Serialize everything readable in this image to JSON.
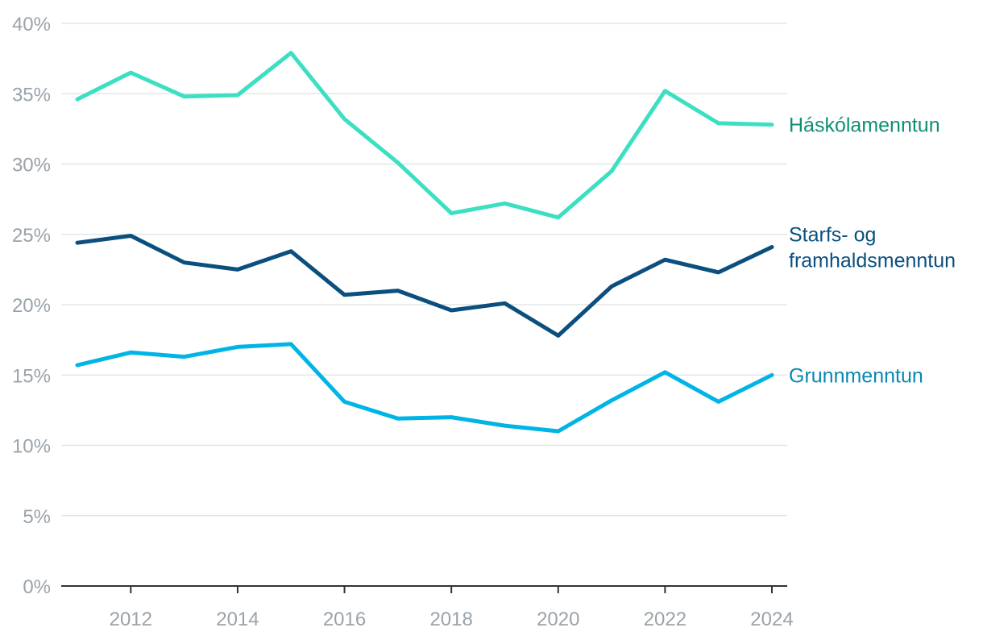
{
  "chart_data": {
    "type": "line",
    "x": [
      2011,
      2012,
      2013,
      2014,
      2015,
      2016,
      2017,
      2018,
      2019,
      2020,
      2021,
      2022,
      2023,
      2024
    ],
    "xticks": [
      "2012",
      "2014",
      "2016",
      "2018",
      "2020",
      "2022",
      "2024"
    ],
    "yticks": [
      "0%",
      "5%",
      "10%",
      "15%",
      "20%",
      "25%",
      "30%",
      "35%",
      "40%"
    ],
    "ylim": [
      0,
      40
    ],
    "xlim": [
      2011,
      2024
    ],
    "grid": true,
    "legend": "inline-right",
    "series": [
      {
        "name": "Háskólamenntun",
        "label_lines": [
          "Háskólamenntun"
        ],
        "color": "#3ddfc2",
        "label_color": "#0f8f73",
        "values": [
          34.6,
          36.5,
          34.8,
          34.9,
          37.9,
          33.2,
          30.1,
          26.5,
          27.2,
          26.2,
          29.5,
          35.2,
          32.9,
          32.8
        ]
      },
      {
        "name": "Starfs- og framhaldsmenntun",
        "label_lines": [
          "Starfs- og",
          "framhaldsmenntun"
        ],
        "color": "#0b4f7f",
        "label_color": "#0b4f7f",
        "values": [
          24.4,
          24.9,
          23.0,
          22.5,
          23.8,
          20.7,
          21.0,
          19.6,
          20.1,
          17.8,
          21.3,
          23.2,
          22.3,
          24.1
        ]
      },
      {
        "name": "Grunnmenntun",
        "label_lines": [
          "Grunnmenntun"
        ],
        "color": "#00b4e6",
        "label_color": "#0a87b5",
        "values": [
          15.7,
          16.6,
          16.3,
          17.0,
          17.2,
          13.1,
          11.9,
          12.0,
          11.4,
          11.0,
          13.2,
          15.2,
          13.1,
          15.0
        ]
      }
    ]
  }
}
